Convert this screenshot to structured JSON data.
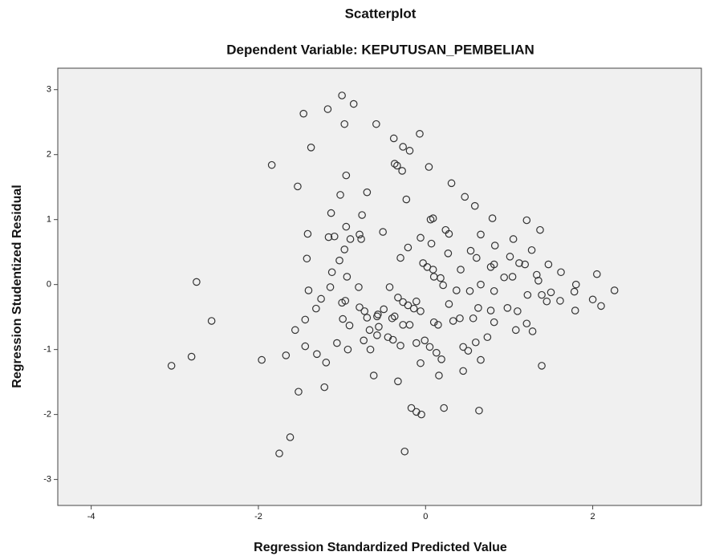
{
  "chart_data": {
    "type": "scatter",
    "title": "Scatterplot",
    "subtitle": "Dependent Variable: KEPUTUSAN_PEMBELIAN",
    "x_label": "Regression Standardized Predicted Value",
    "y_label": "Regression Studentized Residual",
    "xlim": [
      -4.4,
      3.3
    ],
    "ylim": [
      -3.4,
      3.33
    ],
    "xticks": [
      -4,
      -2,
      0,
      2
    ],
    "yticks": [
      -3,
      -2,
      -1,
      0,
      1,
      2,
      3
    ],
    "color": "#333333",
    "background": "#f0f0f0",
    "x": [
      -1.0,
      -0.86,
      -1.46,
      -1.17,
      -0.97,
      -0.59,
      -0.07,
      -0.38,
      -1.37,
      -0.27,
      -0.19,
      -1.84,
      -0.37,
      -0.34,
      -0.28,
      0.04,
      -1.53,
      -0.95,
      0.31,
      -1.02,
      -0.7,
      -0.23,
      0.47,
      0.59,
      -1.13,
      -0.76,
      0.09,
      0.06,
      0.8,
      1.21,
      -1.41,
      0.24,
      0.28,
      1.37,
      -0.95,
      -1.09,
      -0.79,
      -0.9,
      -0.77,
      -0.51,
      0.66,
      -0.06,
      0.07,
      -1.16,
      -1.42,
      -0.97,
      -1.03,
      1.05,
      0.83,
      1.27,
      0.54,
      -0.21,
      0.27,
      0.61,
      -0.03,
      0.02,
      0.09,
      -0.3,
      1.01,
      1.12,
      1.47,
      1.19,
      1.62,
      2.05,
      1.33,
      0.82,
      0.78,
      1.04,
      0.94,
      -0.94,
      -1.12,
      0.42,
      0.1,
      0.18,
      0.66,
      0.37,
      1.35,
      1.8,
      2.0,
      2.26,
      1.78,
      -1.4,
      -1.14,
      -0.8,
      -0.43,
      0.21,
      -0.33,
      -0.27,
      -0.21,
      -0.14,
      -0.06,
      0.28,
      0.53,
      0.82,
      1.22,
      1.39,
      1.61,
      1.5,
      2.1,
      1.79,
      -1.25,
      -0.96,
      -1.0,
      -0.79,
      -0.5,
      -0.73,
      -0.57,
      -0.4,
      -0.27,
      0.1,
      0.15,
      0.41,
      0.63,
      0.78,
      0.98,
      1.1,
      1.21,
      1.45,
      -1.31,
      -1.44,
      -0.7,
      -0.37,
      -0.19,
      0.33,
      0.57,
      0.82,
      1.08,
      1.28,
      -1.56,
      -0.91,
      -0.56,
      -0.67,
      -0.58,
      -1.06,
      -0.74,
      -0.45,
      -0.01,
      0.05,
      0.13,
      0.19,
      -0.11,
      0.45,
      0.6,
      0.74,
      0.51,
      -0.39,
      -0.3,
      -1.44,
      -1.3,
      -1.19,
      -0.93,
      -0.66,
      0.66,
      1.39,
      -1.96,
      -1.67,
      -2.8,
      -3.04,
      -2.74,
      -2.56,
      -0.62,
      -0.06,
      0.16,
      0.45,
      -0.33,
      -0.17,
      -0.11,
      -0.05,
      0.22,
      0.64,
      -1.21,
      -1.52,
      -1.62,
      -1.75,
      -0.25,
      -0.99,
      -0.58,
      -0.11
    ],
    "values": [
      2.91,
      2.78,
      2.63,
      2.7,
      2.47,
      2.47,
      2.32,
      2.25,
      2.11,
      2.12,
      2.06,
      1.84,
      1.86,
      1.83,
      1.75,
      1.81,
      1.51,
      1.68,
      1.56,
      1.38,
      1.42,
      1.31,
      1.35,
      1.21,
      1.1,
      1.07,
      1.02,
      1.0,
      1.02,
      0.99,
      0.78,
      0.84,
      0.78,
      0.84,
      0.89,
      0.74,
      0.77,
      0.7,
      0.7,
      0.81,
      0.77,
      0.72,
      0.63,
      0.73,
      0.4,
      0.54,
      0.37,
      0.7,
      0.6,
      0.53,
      0.52,
      0.57,
      0.48,
      0.41,
      0.33,
      0.27,
      0.23,
      0.41,
      0.43,
      0.33,
      0.31,
      0.31,
      0.19,
      0.16,
      0.15,
      0.31,
      0.27,
      0.12,
      0.11,
      0.12,
      0.19,
      0.23,
      0.12,
      0.1,
      0.0,
      -0.09,
      0.06,
      0.0,
      -0.23,
      -0.09,
      -0.11,
      -0.09,
      -0.04,
      -0.04,
      -0.04,
      -0.01,
      -0.2,
      -0.27,
      -0.32,
      -0.37,
      -0.41,
      -0.3,
      -0.1,
      -0.1,
      -0.16,
      -0.16,
      -0.25,
      -0.12,
      -0.33,
      -0.4,
      -0.22,
      -0.25,
      -0.28,
      -0.35,
      -0.38,
      -0.41,
      -0.46,
      -0.52,
      -0.62,
      -0.58,
      -0.62,
      -0.52,
      -0.36,
      -0.4,
      -0.36,
      -0.41,
      -0.6,
      -0.26,
      -0.37,
      -0.54,
      -0.51,
      -0.49,
      -0.62,
      -0.56,
      -0.52,
      -0.58,
      -0.7,
      -0.72,
      -0.7,
      -0.63,
      -0.65,
      -0.7,
      -0.78,
      -0.9,
      -0.86,
      -0.81,
      -0.86,
      -0.96,
      -1.05,
      -1.15,
      -0.9,
      -0.96,
      -0.89,
      -0.81,
      -1.02,
      -0.85,
      -0.94,
      -0.95,
      -1.07,
      -1.2,
      -1.0,
      -1.0,
      -1.16,
      -1.25,
      -1.16,
      -1.09,
      -1.11,
      -1.25,
      0.04,
      -0.56,
      -1.4,
      -1.21,
      -1.4,
      -1.33,
      -1.49,
      -1.9,
      -1.96,
      -2.0,
      -1.9,
      -1.94,
      -1.58,
      -1.65,
      -2.35,
      -2.6,
      -2.57,
      -0.53,
      -0.49,
      -0.26
    ]
  }
}
